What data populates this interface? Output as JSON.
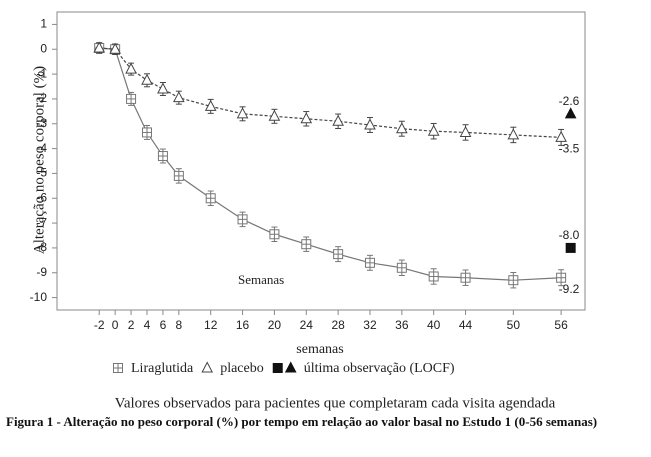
{
  "chart_data": {
    "type": "line",
    "y_label": "Alteração no peso corporal (%)",
    "x_label": "semanas",
    "annotation": "Semanas",
    "subtitle": "Valores observados para pacientes que completaram cada visita agendada",
    "caption": "Figura 1 - Alteração no peso corporal (%) por tempo em relação ao valor basal no Estudo 1 (0-56 semanas)",
    "xlim": [
      -7.3,
      59
    ],
    "ylim": [
      -10.5,
      1.5
    ],
    "xticks": [
      -2,
      0,
      2,
      4,
      6,
      8,
      12,
      16,
      20,
      24,
      28,
      32,
      36,
      40,
      44,
      50,
      56
    ],
    "yticks": [
      1,
      0,
      -1,
      -2,
      -3,
      -4,
      -5,
      -6,
      -7,
      -8,
      -9,
      -10
    ],
    "series": [
      {
        "name": "Liraglutida",
        "color": "#777777",
        "marker": "square-open",
        "dash": false,
        "x": [
          -2,
          0,
          2,
          4,
          6,
          8,
          12,
          16,
          20,
          24,
          28,
          32,
          36,
          40,
          44,
          50,
          56
        ],
        "values": [
          0.05,
          0,
          -2.0,
          -3.35,
          -4.3,
          -5.1,
          -6.0,
          -6.85,
          -7.45,
          -7.85,
          -8.25,
          -8.6,
          -8.8,
          -9.15,
          -9.2,
          -9.3,
          -9.2
        ],
        "errors": [
          0.05,
          0.05,
          0.1,
          0.12,
          0.12,
          0.13,
          0.13,
          0.13,
          0.13,
          0.13,
          0.14,
          0.14,
          0.15,
          0.15,
          0.15,
          0.15,
          0.16
        ],
        "value_labels": [
          null,
          null,
          null,
          null,
          null,
          null,
          null,
          null,
          null,
          null,
          null,
          null,
          null,
          null,
          null,
          null,
          "-9.2"
        ]
      },
      {
        "name": "placebo",
        "color": "#444444",
        "marker": "triangle-open",
        "dash": true,
        "x": [
          -2,
          0,
          2,
          4,
          6,
          8,
          12,
          16,
          20,
          24,
          28,
          32,
          36,
          40,
          44,
          50,
          56
        ],
        "values": [
          0.05,
          0,
          -0.8,
          -1.25,
          -1.6,
          -1.95,
          -2.3,
          -2.6,
          -2.7,
          -2.8,
          -2.9,
          -3.05,
          -3.2,
          -3.3,
          -3.35,
          -3.45,
          -3.55
        ],
        "errors": [
          0.05,
          0.05,
          0.08,
          0.1,
          0.1,
          0.1,
          0.12,
          0.12,
          0.12,
          0.13,
          0.13,
          0.14,
          0.14,
          0.15,
          0.15,
          0.15,
          0.16
        ],
        "value_labels": [
          null,
          null,
          null,
          null,
          null,
          null,
          null,
          null,
          null,
          null,
          null,
          null,
          null,
          null,
          null,
          null,
          "-3.5"
        ]
      },
      {
        "name": "última observação (LOCF)",
        "color": "#111111",
        "markers": [
          "square",
          "triangle"
        ],
        "line": false,
        "x": [
          57.2,
          57.2
        ],
        "values": [
          -8.0,
          -2.6
        ],
        "value_labels": [
          "-8.0",
          "-2.6"
        ]
      }
    ]
  }
}
